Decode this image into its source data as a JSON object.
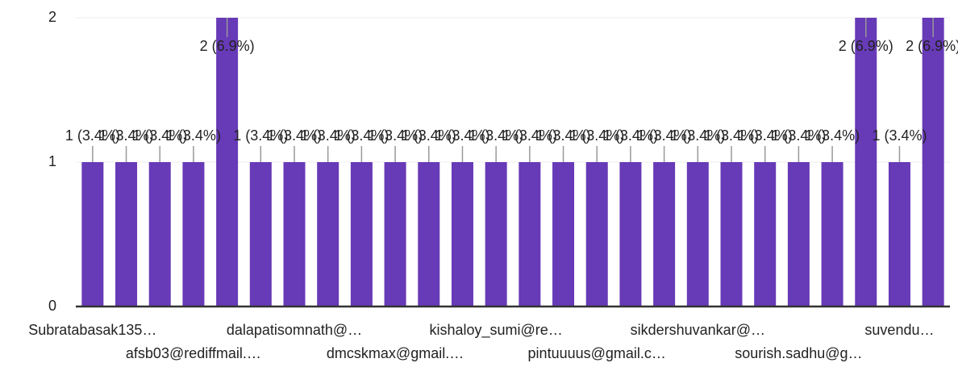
{
  "chart_data": {
    "type": "bar",
    "categories": [
      "Subratabasak135…",
      null,
      null,
      "afsb03@rediffmail.…",
      null,
      null,
      "dalapatisomnath@…",
      null,
      null,
      "dmcskmax@gmail.…",
      null,
      null,
      "kishaloy_sumi@re…",
      null,
      null,
      "pintuuuus@gmail.c…",
      null,
      null,
      "sikdershuvankar@…",
      null,
      null,
      "sourish.sadhu@g…",
      null,
      null,
      "suvendu…",
      null
    ],
    "values": [
      1,
      1,
      1,
      1,
      2,
      1,
      1,
      1,
      1,
      1,
      1,
      1,
      1,
      1,
      1,
      1,
      1,
      1,
      1,
      1,
      1,
      1,
      1,
      2,
      1,
      2
    ],
    "value_labels": [
      "1 (3.4%)",
      "1 (3.4%)",
      "1 (3.4%)",
      "1 (3.4%)",
      "2 (6.9%)",
      "1 (3.4%)",
      "1 (3.4%)",
      "1 (3.4%)",
      "1 (3.4%)",
      "1 (3.4%)",
      "1 (3.4%)",
      "1 (3.4%)",
      "1 (3.4%)",
      "1 (3.4%)",
      "1 (3.4%)",
      "1 (3.4%)",
      "1 (3.4%)",
      "1 (3.4%)",
      "1 (3.4%)",
      "1 (3.4%)",
      "1 (3.4%)",
      "1 (3.4%)",
      "1 (3.4%)",
      "2 (6.9%)",
      "1 (3.4%)",
      "2 (6.9%)"
    ],
    "color": "#673ab7",
    "ylim": [
      0,
      2
    ],
    "yticks": [
      0,
      1,
      2
    ],
    "grid": true
  }
}
